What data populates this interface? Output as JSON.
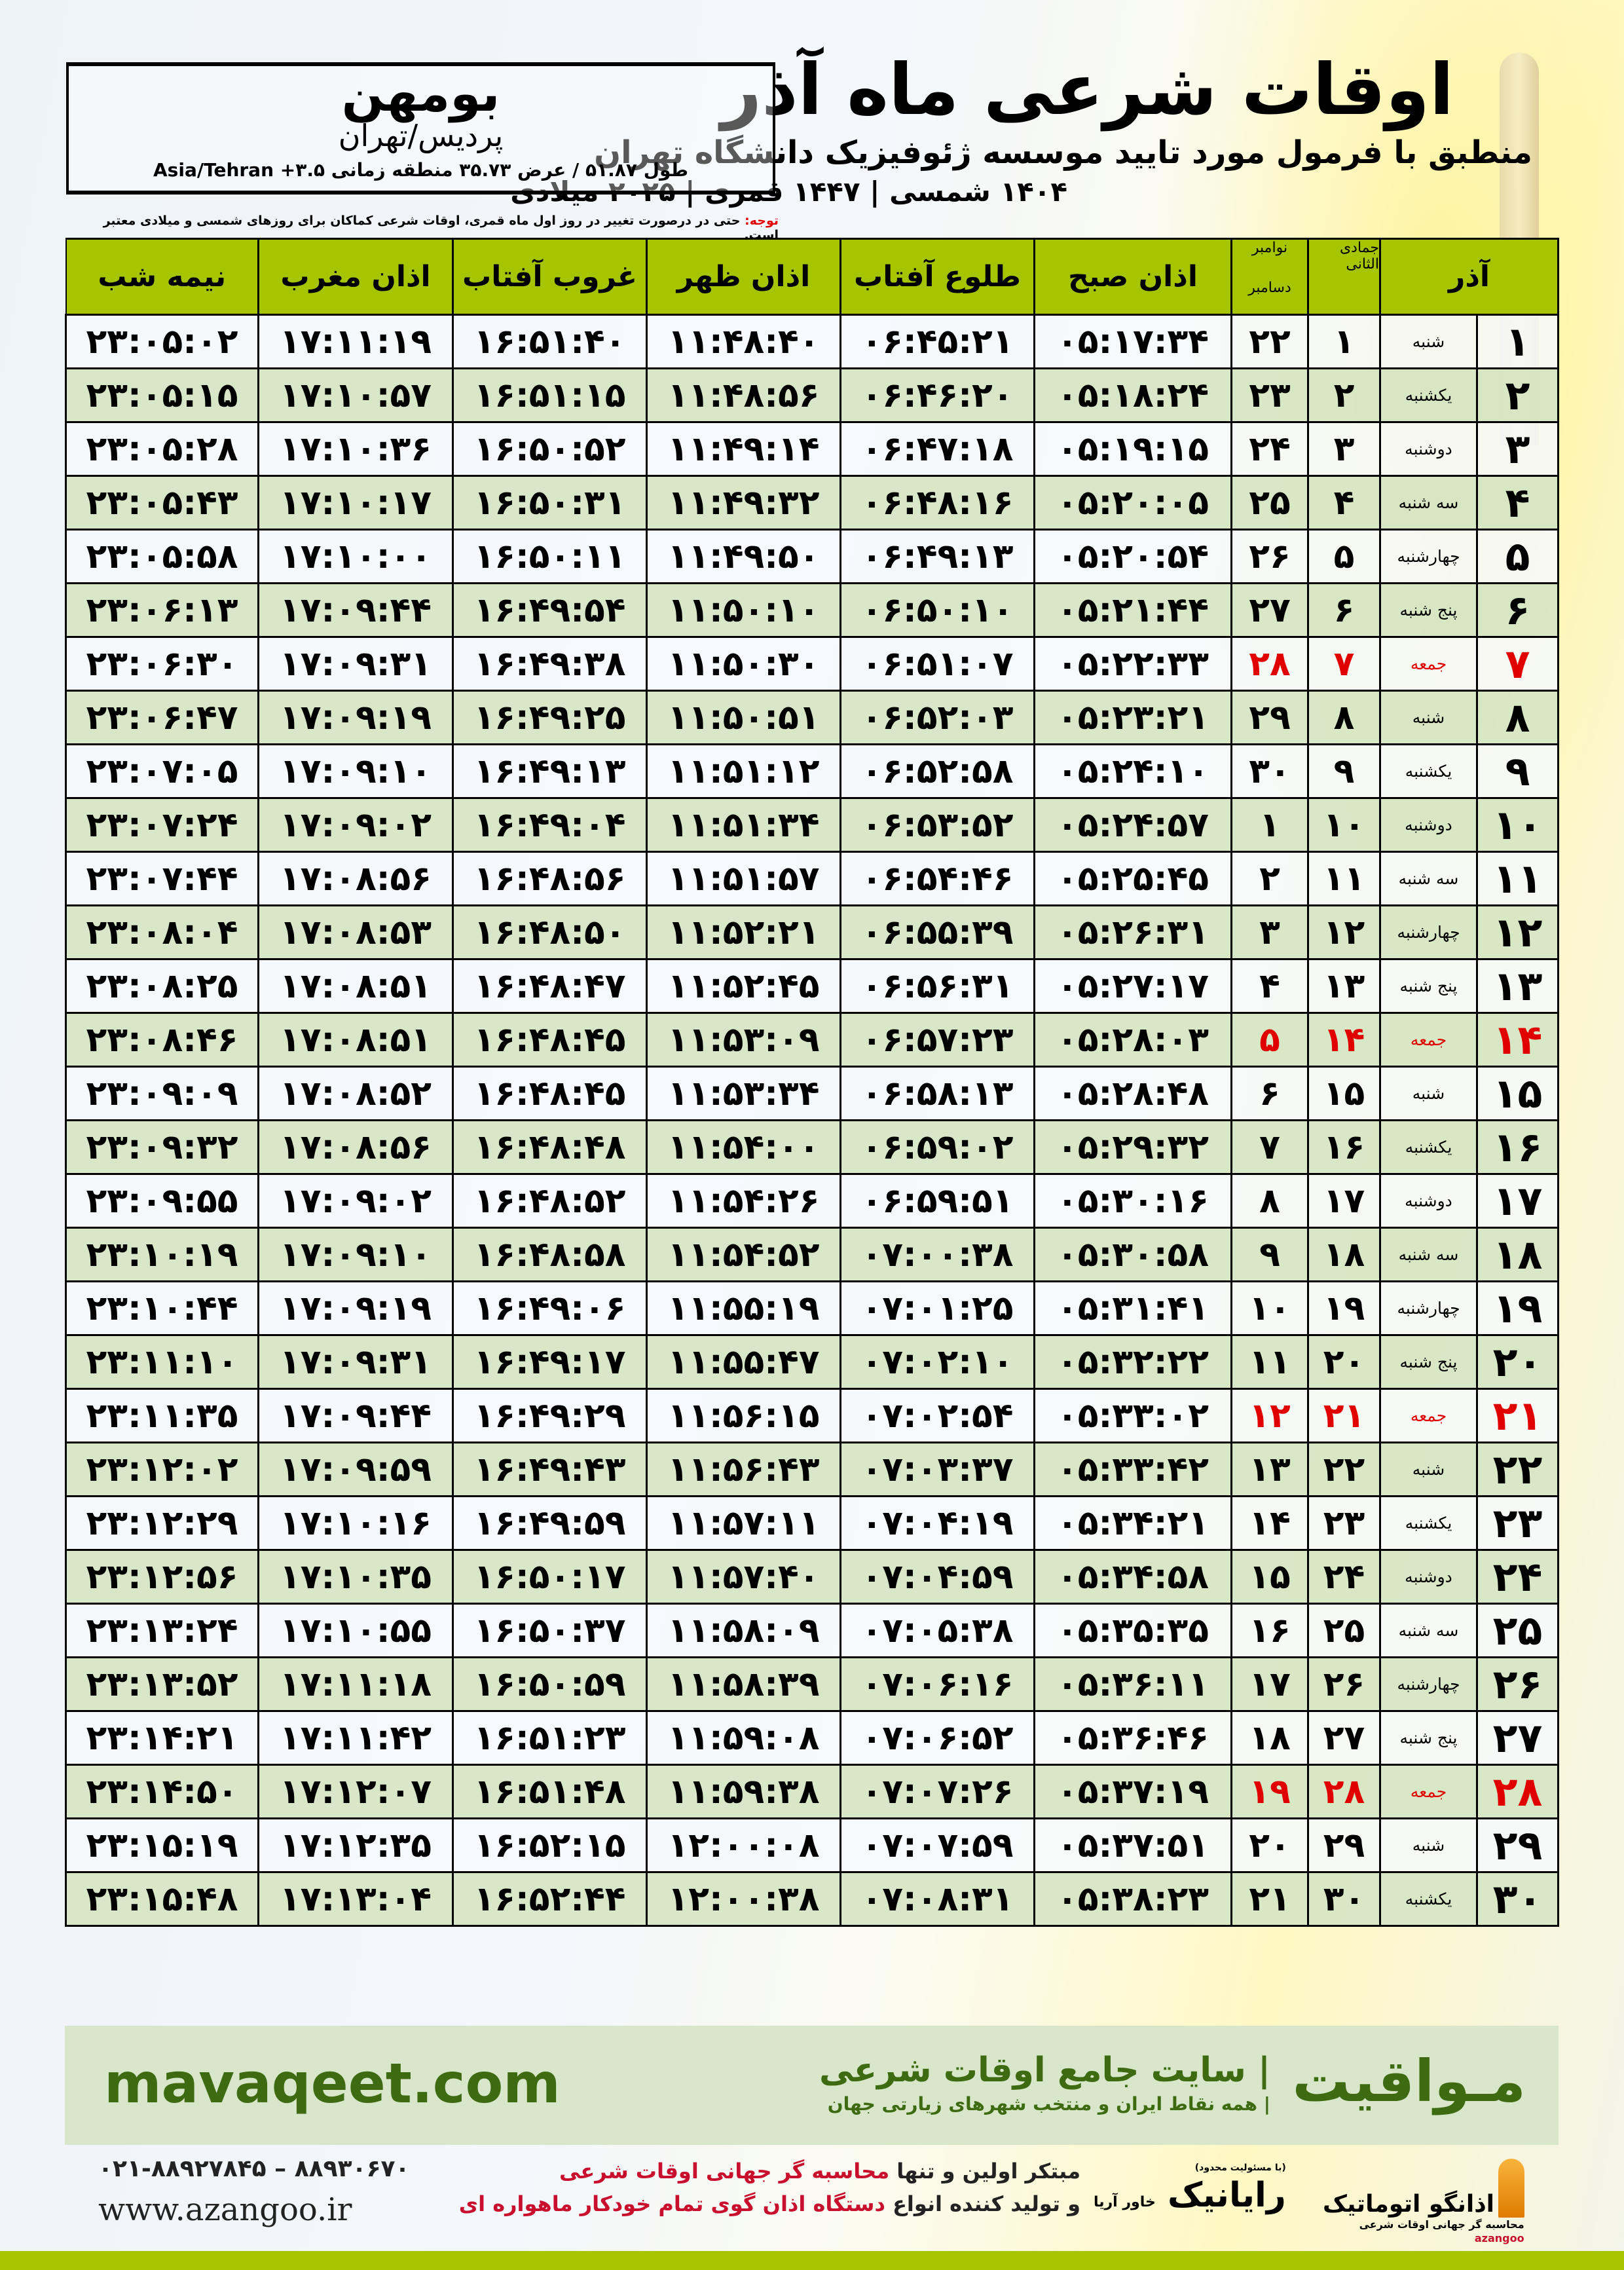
{
  "header": {
    "title": "اوقات شرعی ماه آذر",
    "subtitle": "منطبق با فرمول مورد تایید موسسه ژئوفیزیک دانشگاه تهران",
    "years": "۱۴۰۴ شمسی | ۱۴۴۷ قمری | ۲۰۲۵ میلادی"
  },
  "location": {
    "city": "بومهن",
    "region": "پردیس/تهران",
    "coords": "طول ۵۱.۸۷ / عرض ۳۵.۷۳ منطقه زمانی ۳.۵+ Asia/Tehran"
  },
  "note": {
    "label": "توجه:",
    "text": " حتی در درصورت تغییر در روز اول ماه قمری، اوقات شرعی کماکان برای روزهای شمسی و میلادی معتبر است."
  },
  "colors": {
    "header_green": "#a6c400",
    "row_green": "#d6e6c4",
    "friday_red": "#e00000",
    "brand_green": "#3e6b12"
  },
  "table": {
    "headers": {
      "day": "آذر",
      "hijri": "جمادی الثانی",
      "gregorian_top": "نوامبر",
      "gregorian_bottom": "دسامبر",
      "sobh": "اذان صبح",
      "tolu": "طلوع آفتاب",
      "zohr": "اذان ظهر",
      "ghorub": "غروب آفتاب",
      "maghrib": "اذان مغرب",
      "nimeshab": "نیمه شب"
    },
    "rows": [
      {
        "day": "۱",
        "weekday": "شنبه",
        "hijri": "۱",
        "greg": "۲۲",
        "sobh": "۰۵:۱۷:۳۴",
        "tolu": "۰۶:۴۵:۲۱",
        "zohr": "۱۱:۴۸:۴۰",
        "ghorub": "۱۶:۵۱:۴۰",
        "maghrib": "۱۷:۱۱:۱۹",
        "nimeshab": "۲۳:۰۵:۰۲"
      },
      {
        "day": "۲",
        "weekday": "یکشنبه",
        "hijri": "۲",
        "greg": "۲۳",
        "sobh": "۰۵:۱۸:۲۴",
        "tolu": "۰۶:۴۶:۲۰",
        "zohr": "۱۱:۴۸:۵۶",
        "ghorub": "۱۶:۵۱:۱۵",
        "maghrib": "۱۷:۱۰:۵۷",
        "nimeshab": "۲۳:۰۵:۱۵"
      },
      {
        "day": "۳",
        "weekday": "دوشنبه",
        "hijri": "۳",
        "greg": "۲۴",
        "sobh": "۰۵:۱۹:۱۵",
        "tolu": "۰۶:۴۷:۱۸",
        "zohr": "۱۱:۴۹:۱۴",
        "ghorub": "۱۶:۵۰:۵۲",
        "maghrib": "۱۷:۱۰:۳۶",
        "nimeshab": "۲۳:۰۵:۲۸"
      },
      {
        "day": "۴",
        "weekday": "سه شنبه",
        "hijri": "۴",
        "greg": "۲۵",
        "sobh": "۰۵:۲۰:۰۵",
        "tolu": "۰۶:۴۸:۱۶",
        "zohr": "۱۱:۴۹:۳۲",
        "ghorub": "۱۶:۵۰:۳۱",
        "maghrib": "۱۷:۱۰:۱۷",
        "nimeshab": "۲۳:۰۵:۴۳"
      },
      {
        "day": "۵",
        "weekday": "چهارشنبه",
        "hijri": "۵",
        "greg": "۲۶",
        "sobh": "۰۵:۲۰:۵۴",
        "tolu": "۰۶:۴۹:۱۳",
        "zohr": "۱۱:۴۹:۵۰",
        "ghorub": "۱۶:۵۰:۱۱",
        "maghrib": "۱۷:۱۰:۰۰",
        "nimeshab": "۲۳:۰۵:۵۸"
      },
      {
        "day": "۶",
        "weekday": "پنج شنبه",
        "hijri": "۶",
        "greg": "۲۷",
        "sobh": "۰۵:۲۱:۴۴",
        "tolu": "۰۶:۵۰:۱۰",
        "zohr": "۱۱:۵۰:۱۰",
        "ghorub": "۱۶:۴۹:۵۴",
        "maghrib": "۱۷:۰۹:۴۴",
        "nimeshab": "۲۳:۰۶:۱۳"
      },
      {
        "day": "۷",
        "weekday": "جمعه",
        "hijri": "۷",
        "greg": "۲۸",
        "sobh": "۰۵:۲۲:۳۳",
        "tolu": "۰۶:۵۱:۰۷",
        "zohr": "۱۱:۵۰:۳۰",
        "ghorub": "۱۶:۴۹:۳۸",
        "maghrib": "۱۷:۰۹:۳۱",
        "nimeshab": "۲۳:۰۶:۳۰",
        "friday": true
      },
      {
        "day": "۸",
        "weekday": "شنبه",
        "hijri": "۸",
        "greg": "۲۹",
        "sobh": "۰۵:۲۳:۲۱",
        "tolu": "۰۶:۵۲:۰۳",
        "zohr": "۱۱:۵۰:۵۱",
        "ghorub": "۱۶:۴۹:۲۵",
        "maghrib": "۱۷:۰۹:۱۹",
        "nimeshab": "۲۳:۰۶:۴۷"
      },
      {
        "day": "۹",
        "weekday": "یکشنبه",
        "hijri": "۹",
        "greg": "۳۰",
        "sobh": "۰۵:۲۴:۱۰",
        "tolu": "۰۶:۵۲:۵۸",
        "zohr": "۱۱:۵۱:۱۲",
        "ghorub": "۱۶:۴۹:۱۳",
        "maghrib": "۱۷:۰۹:۱۰",
        "nimeshab": "۲۳:۰۷:۰۵"
      },
      {
        "day": "۱۰",
        "weekday": "دوشنبه",
        "hijri": "۱۰",
        "greg": "۱",
        "sobh": "۰۵:۲۴:۵۷",
        "tolu": "۰۶:۵۳:۵۲",
        "zohr": "۱۱:۵۱:۳۴",
        "ghorub": "۱۶:۴۹:۰۴",
        "maghrib": "۱۷:۰۹:۰۲",
        "nimeshab": "۲۳:۰۷:۲۴"
      },
      {
        "day": "۱۱",
        "weekday": "سه شنبه",
        "hijri": "۱۱",
        "greg": "۲",
        "sobh": "۰۵:۲۵:۴۵",
        "tolu": "۰۶:۵۴:۴۶",
        "zohr": "۱۱:۵۱:۵۷",
        "ghorub": "۱۶:۴۸:۵۶",
        "maghrib": "۱۷:۰۸:۵۶",
        "nimeshab": "۲۳:۰۷:۴۴"
      },
      {
        "day": "۱۲",
        "weekday": "چهارشنبه",
        "hijri": "۱۲",
        "greg": "۳",
        "sobh": "۰۵:۲۶:۳۱",
        "tolu": "۰۶:۵۵:۳۹",
        "zohr": "۱۱:۵۲:۲۱",
        "ghorub": "۱۶:۴۸:۵۰",
        "maghrib": "۱۷:۰۸:۵۳",
        "nimeshab": "۲۳:۰۸:۰۴"
      },
      {
        "day": "۱۳",
        "weekday": "پنج شنبه",
        "hijri": "۱۳",
        "greg": "۴",
        "sobh": "۰۵:۲۷:۱۷",
        "tolu": "۰۶:۵۶:۳۱",
        "zohr": "۱۱:۵۲:۴۵",
        "ghorub": "۱۶:۴۸:۴۷",
        "maghrib": "۱۷:۰۸:۵۱",
        "nimeshab": "۲۳:۰۸:۲۵"
      },
      {
        "day": "۱۴",
        "weekday": "جمعه",
        "hijri": "۱۴",
        "greg": "۵",
        "sobh": "۰۵:۲۸:۰۳",
        "tolu": "۰۶:۵۷:۲۳",
        "zohr": "۱۱:۵۳:۰۹",
        "ghorub": "۱۶:۴۸:۴۵",
        "maghrib": "۱۷:۰۸:۵۱",
        "nimeshab": "۲۳:۰۸:۴۶",
        "friday": true
      },
      {
        "day": "۱۵",
        "weekday": "شنبه",
        "hijri": "۱۵",
        "greg": "۶",
        "sobh": "۰۵:۲۸:۴۸",
        "tolu": "۰۶:۵۸:۱۳",
        "zohr": "۱۱:۵۳:۳۴",
        "ghorub": "۱۶:۴۸:۴۵",
        "maghrib": "۱۷:۰۸:۵۲",
        "nimeshab": "۲۳:۰۹:۰۹"
      },
      {
        "day": "۱۶",
        "weekday": "یکشنبه",
        "hijri": "۱۶",
        "greg": "۷",
        "sobh": "۰۵:۲۹:۳۲",
        "tolu": "۰۶:۵۹:۰۲",
        "zohr": "۱۱:۵۴:۰۰",
        "ghorub": "۱۶:۴۸:۴۸",
        "maghrib": "۱۷:۰۸:۵۶",
        "nimeshab": "۲۳:۰۹:۳۲"
      },
      {
        "day": "۱۷",
        "weekday": "دوشنبه",
        "hijri": "۱۷",
        "greg": "۸",
        "sobh": "۰۵:۳۰:۱۶",
        "tolu": "۰۶:۵۹:۵۱",
        "zohr": "۱۱:۵۴:۲۶",
        "ghorub": "۱۶:۴۸:۵۲",
        "maghrib": "۱۷:۰۹:۰۲",
        "nimeshab": "۲۳:۰۹:۵۵"
      },
      {
        "day": "۱۸",
        "weekday": "سه شنبه",
        "hijri": "۱۸",
        "greg": "۹",
        "sobh": "۰۵:۳۰:۵۸",
        "tolu": "۰۷:۰۰:۳۸",
        "zohr": "۱۱:۵۴:۵۲",
        "ghorub": "۱۶:۴۸:۵۸",
        "maghrib": "۱۷:۰۹:۱۰",
        "nimeshab": "۲۳:۱۰:۱۹"
      },
      {
        "day": "۱۹",
        "weekday": "چهارشنبه",
        "hijri": "۱۹",
        "greg": "۱۰",
        "sobh": "۰۵:۳۱:۴۱",
        "tolu": "۰۷:۰۱:۲۵",
        "zohr": "۱۱:۵۵:۱۹",
        "ghorub": "۱۶:۴۹:۰۶",
        "maghrib": "۱۷:۰۹:۱۹",
        "nimeshab": "۲۳:۱۰:۴۴"
      },
      {
        "day": "۲۰",
        "weekday": "پنج شنبه",
        "hijri": "۲۰",
        "greg": "۱۱",
        "sobh": "۰۵:۳۲:۲۲",
        "tolu": "۰۷:۰۲:۱۰",
        "zohr": "۱۱:۵۵:۴۷",
        "ghorub": "۱۶:۴۹:۱۷",
        "maghrib": "۱۷:۰۹:۳۱",
        "nimeshab": "۲۳:۱۱:۱۰"
      },
      {
        "day": "۲۱",
        "weekday": "جمعه",
        "hijri": "۲۱",
        "greg": "۱۲",
        "sobh": "۰۵:۳۳:۰۲",
        "tolu": "۰۷:۰۲:۵۴",
        "zohr": "۱۱:۵۶:۱۵",
        "ghorub": "۱۶:۴۹:۲۹",
        "maghrib": "۱۷:۰۹:۴۴",
        "nimeshab": "۲۳:۱۱:۳۵",
        "friday": true
      },
      {
        "day": "۲۲",
        "weekday": "شنبه",
        "hijri": "۲۲",
        "greg": "۱۳",
        "sobh": "۰۵:۳۳:۴۲",
        "tolu": "۰۷:۰۳:۳۷",
        "zohr": "۱۱:۵۶:۴۳",
        "ghorub": "۱۶:۴۹:۴۳",
        "maghrib": "۱۷:۰۹:۵۹",
        "nimeshab": "۲۳:۱۲:۰۲"
      },
      {
        "day": "۲۳",
        "weekday": "یکشنبه",
        "hijri": "۲۳",
        "greg": "۱۴",
        "sobh": "۰۵:۳۴:۲۱",
        "tolu": "۰۷:۰۴:۱۹",
        "zohr": "۱۱:۵۷:۱۱",
        "ghorub": "۱۶:۴۹:۵۹",
        "maghrib": "۱۷:۱۰:۱۶",
        "nimeshab": "۲۳:۱۲:۲۹"
      },
      {
        "day": "۲۴",
        "weekday": "دوشنبه",
        "hijri": "۲۴",
        "greg": "۱۵",
        "sobh": "۰۵:۳۴:۵۸",
        "tolu": "۰۷:۰۴:۵۹",
        "zohr": "۱۱:۵۷:۴۰",
        "ghorub": "۱۶:۵۰:۱۷",
        "maghrib": "۱۷:۱۰:۳۵",
        "nimeshab": "۲۳:۱۲:۵۶"
      },
      {
        "day": "۲۵",
        "weekday": "سه شنبه",
        "hijri": "۲۵",
        "greg": "۱۶",
        "sobh": "۰۵:۳۵:۳۵",
        "tolu": "۰۷:۰۵:۳۸",
        "zohr": "۱۱:۵۸:۰۹",
        "ghorub": "۱۶:۵۰:۳۷",
        "maghrib": "۱۷:۱۰:۵۵",
        "nimeshab": "۲۳:۱۳:۲۴"
      },
      {
        "day": "۲۶",
        "weekday": "چهارشنبه",
        "hijri": "۲۶",
        "greg": "۱۷",
        "sobh": "۰۵:۳۶:۱۱",
        "tolu": "۰۷:۰۶:۱۶",
        "zohr": "۱۱:۵۸:۳۹",
        "ghorub": "۱۶:۵۰:۵۹",
        "maghrib": "۱۷:۱۱:۱۸",
        "nimeshab": "۲۳:۱۳:۵۲"
      },
      {
        "day": "۲۷",
        "weekday": "پنج شنبه",
        "hijri": "۲۷",
        "greg": "۱۸",
        "sobh": "۰۵:۳۶:۴۶",
        "tolu": "۰۷:۰۶:۵۲",
        "zohr": "۱۱:۵۹:۰۸",
        "ghorub": "۱۶:۵۱:۲۳",
        "maghrib": "۱۷:۱۱:۴۲",
        "nimeshab": "۲۳:۱۴:۲۱"
      },
      {
        "day": "۲۸",
        "weekday": "جمعه",
        "hijri": "۲۸",
        "greg": "۱۹",
        "sobh": "۰۵:۳۷:۱۹",
        "tolu": "۰۷:۰۷:۲۶",
        "zohr": "۱۱:۵۹:۳۸",
        "ghorub": "۱۶:۵۱:۴۸",
        "maghrib": "۱۷:۱۲:۰۷",
        "nimeshab": "۲۳:۱۴:۵۰",
        "friday": true
      },
      {
        "day": "۲۹",
        "weekday": "شنبه",
        "hijri": "۲۹",
        "greg": "۲۰",
        "sobh": "۰۵:۳۷:۵۱",
        "tolu": "۰۷:۰۷:۵۹",
        "zohr": "۱۲:۰۰:۰۸",
        "ghorub": "۱۶:۵۲:۱۵",
        "maghrib": "۱۷:۱۲:۳۵",
        "nimeshab": "۲۳:۱۵:۱۹"
      },
      {
        "day": "۳۰",
        "weekday": "یکشنبه",
        "hijri": "۳۰",
        "greg": "۲۱",
        "sobh": "۰۵:۳۸:۲۳",
        "tolu": "۰۷:۰۸:۳۱",
        "zohr": "۱۲:۰۰:۳۸",
        "ghorub": "۱۶:۵۲:۴۴",
        "maghrib": "۱۷:۱۳:۰۴",
        "nimeshab": "۲۳:۱۵:۴۸"
      }
    ]
  },
  "footer": {
    "brand": "مـواقیت",
    "tagline": "| سایت جامع اوقات شرعی",
    "tagline_small": " | همه نقاط ایران و منتخب شهرهای زیارتی جهان",
    "site": "mavaqeet.com",
    "phone": "۰۲۱-۸۸۹۲۷۸۴۵ – ۸۸۹۳۰۶۷۰",
    "web": "www.azangoo.ir",
    "promo1_a": "مبتکر اولین و تنها ",
    "promo1_b": "محاسبه گر جهانی اوقات شرعی",
    "promo2_a": "و تولید کننده انواع ",
    "promo2_b": "دستگاه اذان گوی تمام خودکار ماهواره ای",
    "logo_rayanik": "رایانیک",
    "logo_rayanik_sub": "(با مسئولیت محدود)",
    "logo_khavar": "خاور آریا",
    "logo_azangoo": "اذانگو اتوماتیک",
    "logo_azangoo_sub": "محاسبه گر جهانی اوقات شرعی",
    "logo_azangoo_latin": "azangoo"
  }
}
